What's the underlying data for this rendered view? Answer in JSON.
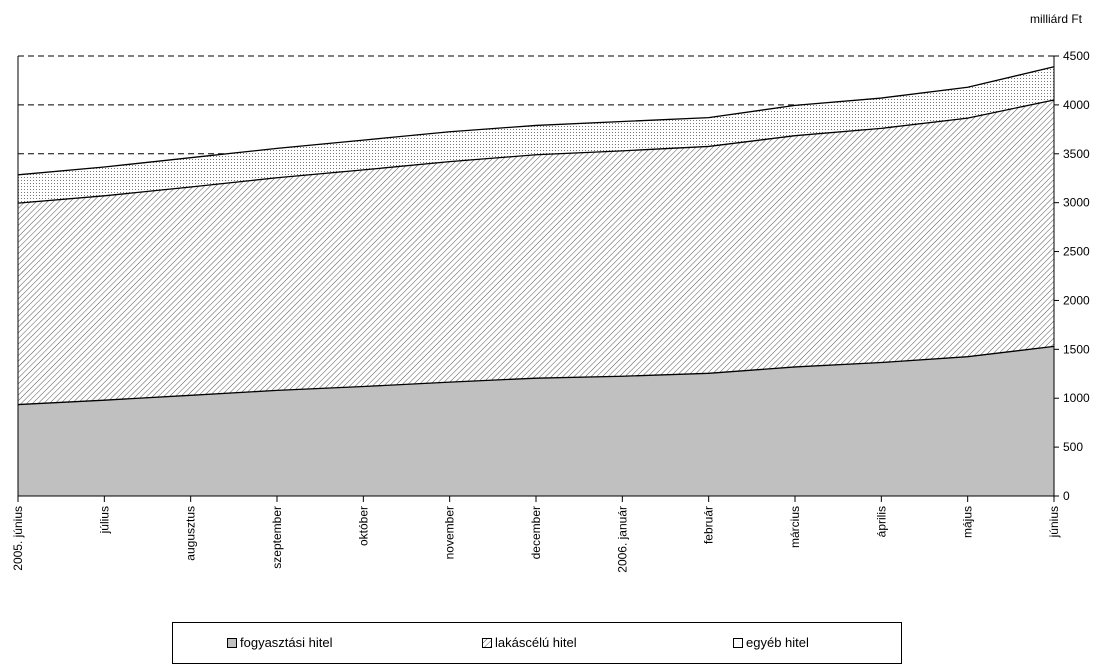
{
  "chart_data": {
    "type": "area",
    "stacked": true,
    "unit_label": "milliárd Ft",
    "categories": [
      "2005. június",
      "július",
      "augusztus",
      "szeptember",
      "október",
      "november",
      "december",
      "2006. január",
      "február",
      "március",
      "április",
      "május",
      "június"
    ],
    "series": [
      {
        "name": "fogyasztási hitel",
        "color": "#c0c0c0",
        "values": [
          935,
          980,
          1030,
          1080,
          1120,
          1165,
          1205,
          1225,
          1255,
          1320,
          1365,
          1425,
          1530
        ]
      },
      {
        "name": "lakáscélú hitel",
        "color": "#ffffff",
        "pattern": "diagonal-hatch",
        "values": [
          2060,
          2090,
          2130,
          2175,
          2215,
          2255,
          2285,
          2305,
          2320,
          2365,
          2395,
          2440,
          2520
        ]
      },
      {
        "name": "egyéb hitel",
        "color": "#ffffff",
        "pattern": "dots",
        "values": [
          290,
          295,
          300,
          300,
          305,
          305,
          300,
          300,
          295,
          310,
          310,
          315,
          340
        ]
      }
    ],
    "ylim": [
      0,
      4500
    ],
    "yticks": [
      0,
      500,
      1000,
      1500,
      2000,
      2500,
      3000,
      3500,
      4000,
      4500
    ],
    "y_axis_position": "right",
    "gridlines": [
      3500,
      4000,
      4500
    ],
    "legend_position": "bottom"
  }
}
